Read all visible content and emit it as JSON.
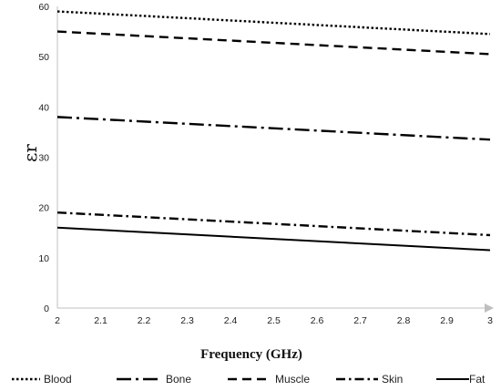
{
  "chart_data": {
    "type": "line",
    "xlabel": "Frequency (GHz)",
    "ylabel": "εr",
    "xlim": [
      2,
      3
    ],
    "ylim": [
      0,
      60
    ],
    "x_ticks": [
      2,
      2.1,
      2.2,
      2.3,
      2.4,
      2.5,
      2.6,
      2.7,
      2.8,
      2.9,
      3
    ],
    "x_tick_labels": [
      "2",
      "2.1",
      "2.2",
      "2.3",
      "2.4",
      "2.5",
      "2.6",
      "2.7",
      "2.8",
      "2.9",
      "3"
    ],
    "y_ticks": [
      0,
      10,
      20,
      30,
      40,
      50,
      60
    ],
    "y_tick_labels": [
      "0",
      "10",
      "20",
      "30",
      "40",
      "50",
      "60"
    ],
    "grid": false,
    "legend_position": "bottom",
    "series": [
      {
        "name": "Blood",
        "style": "dotted",
        "x": [
          2,
          3
        ],
        "values": [
          59,
          54.5
        ]
      },
      {
        "name": "Bone",
        "style": "long-dash-dot",
        "x": [
          2,
          3
        ],
        "values": [
          38,
          33.5
        ]
      },
      {
        "name": "Muscle",
        "style": "dashed",
        "x": [
          2,
          3
        ],
        "values": [
          55,
          50.5
        ]
      },
      {
        "name": "Skin",
        "style": "dash-dot",
        "x": [
          2,
          3
        ],
        "values": [
          19,
          14.5
        ]
      },
      {
        "name": "Fat",
        "style": "solid",
        "x": [
          2,
          3
        ],
        "values": [
          16,
          11.5
        ]
      }
    ],
    "colors": {
      "line": "#000000",
      "axis": "#bfbfbf"
    }
  }
}
